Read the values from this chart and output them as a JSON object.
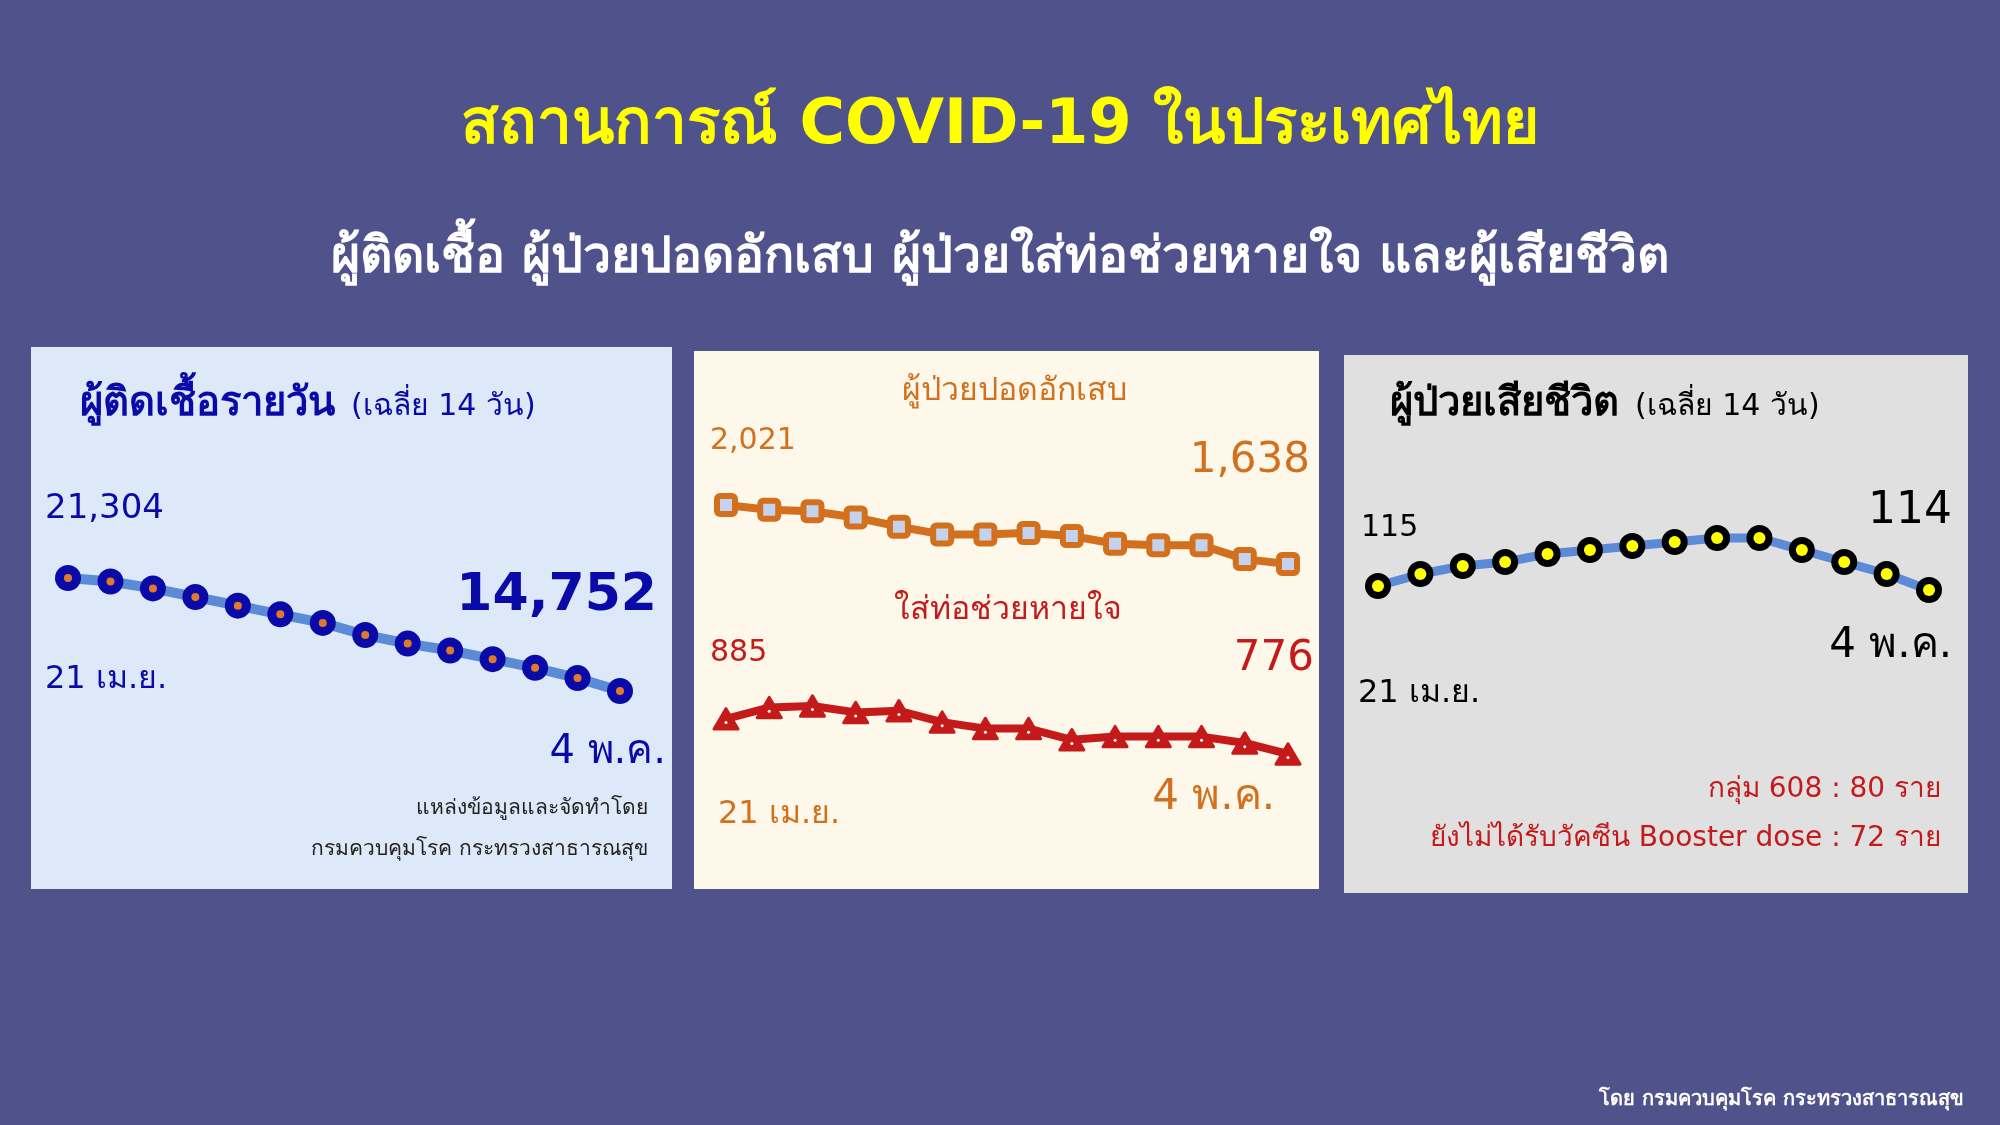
{
  "chart_data": [
    {
      "type": "other",
      "title": "สถานการณ์ COVID-19 ในประเทศไทย",
      "subtitle": "ผู้ติดเชื้อ ผู้ป่วยปอดอักเสบ ผู้ป่วยใส่ท่อช่วยหายใจ และผู้เสียชีวิต",
      "annotations": [
        "โดย กรมควบคุมโรค กระทรวงสาธารณสุข"
      ]
    },
    {
      "type": "line",
      "title": "ผู้ติดเชื้อรายวัน",
      "subtitle": "(เฉลี่ย 14 วัน)",
      "marker": "circle",
      "categories": [
        null,
        null,
        null,
        null,
        null,
        null,
        null,
        null,
        null,
        null,
        null,
        null,
        null,
        null
      ],
      "series": [
        {
          "color": "#5b8ad6",
          "values": [
            21304,
            21100,
            20700,
            20200,
            19700,
            19200,
            18700,
            18000,
            17500,
            17100,
            16600,
            16100,
            15500,
            14752
          ],
          "value_labels": [
            "21,304",
            null,
            null,
            null,
            null,
            null,
            null,
            null,
            null,
            null,
            null,
            null,
            null,
            "14,752"
          ]
        }
      ],
      "annotations": [
        "21 เม.ย.",
        "4 พ.ค.",
        "แหล่งข้อมูลและจัดทำโดย",
        "กรมควบคุมโรค กระทรวงสาธารณสุข"
      ]
    },
    {
      "type": "line",
      "categories": [
        null,
        null,
        null,
        null,
        null,
        null,
        null,
        null,
        null,
        null,
        null,
        null,
        null,
        null
      ],
      "series": [
        {
          "name": "ผู้ป่วยปอดอักเสบ",
          "color": "#d2701e",
          "marker": "square",
          "values": [
            2021,
            1990,
            1980,
            1940,
            1880,
            1830,
            1830,
            1840,
            1820,
            1770,
            1760,
            1760,
            1670,
            1638
          ],
          "value_labels": [
            "2,021",
            null,
            null,
            null,
            null,
            null,
            null,
            null,
            null,
            null,
            null,
            null,
            null,
            "1,638"
          ]
        }
      ]
    },
    {
      "type": "line",
      "categories": [
        null,
        null,
        null,
        null,
        null,
        null,
        null,
        null,
        null,
        null,
        null,
        null,
        null,
        null
      ],
      "series": [
        {
          "name": "ใส่ท่อช่วยหายใจ",
          "color": "#c41a1a",
          "marker": "triangle",
          "values": [
            885,
            920,
            925,
            905,
            910,
            875,
            855,
            855,
            820,
            830,
            830,
            830,
            810,
            776
          ],
          "value_labels": [
            "885",
            null,
            null,
            null,
            null,
            null,
            null,
            null,
            null,
            null,
            null,
            null,
            null,
            "776"
          ]
        }
      ],
      "annotations": [
        "21 เม.ย.",
        "4 พ.ค."
      ]
    },
    {
      "type": "line",
      "title": "ผู้ป่วยเสียชีวิต",
      "subtitle": "(เฉลี่ย 14 วัน)",
      "marker": "circle",
      "categories": [
        null,
        null,
        null,
        null,
        null,
        null,
        null,
        null,
        null,
        null,
        null,
        null,
        null,
        null
      ],
      "series": [
        {
          "color": "#5b8ad6",
          "values": [
            115,
            118,
            120,
            121,
            123,
            124,
            125,
            126,
            127,
            127,
            124,
            121,
            118,
            114
          ],
          "value_labels": [
            "115",
            null,
            null,
            null,
            null,
            null,
            null,
            null,
            null,
            null,
            null,
            null,
            null,
            "114"
          ]
        }
      ],
      "annotations": [
        "21 เม.ย.",
        "4 พ.ค.",
        "กลุ่ม 608 : 80 ราย",
        "ยังไม่ได้รับวัคซีน Booster dose : 72 ราย"
      ]
    }
  ]
}
